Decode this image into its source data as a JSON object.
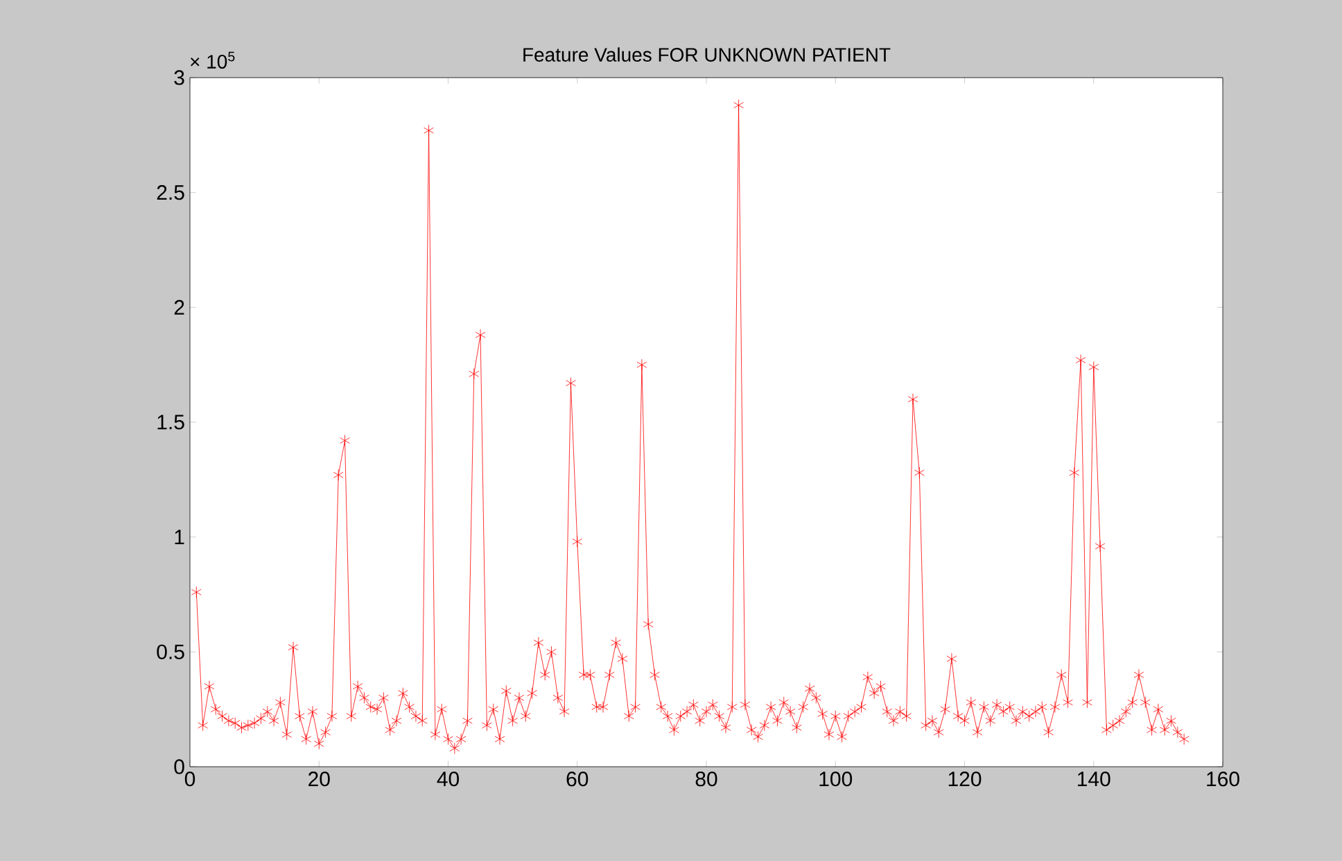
{
  "chart_data": {
    "type": "line",
    "title": "Feature Values FOR UNKNOWN PATIENT",
    "annotations": [
      "× 10$^{5}$"
    ],
    "x": [
      1,
      2,
      3,
      4,
      5,
      6,
      7,
      8,
      9,
      10,
      11,
      12,
      13,
      14,
      15,
      16,
      17,
      18,
      19,
      20,
      21,
      22,
      23,
      24,
      25,
      26,
      27,
      28,
      29,
      30,
      31,
      32,
      33,
      34,
      35,
      36,
      37,
      38,
      39,
      40,
      41,
      42,
      43,
      44,
      45,
      46,
      47,
      48,
      49,
      50,
      51,
      52,
      53,
      54,
      55,
      56,
      57,
      58,
      59,
      60,
      61,
      62,
      63,
      64,
      65,
      66,
      67,
      68,
      69,
      70,
      71,
      72,
      73,
      74,
      75,
      76,
      77,
      78,
      79,
      80,
      81,
      82,
      83,
      84,
      85,
      86,
      87,
      88,
      89,
      90,
      91,
      92,
      93,
      94,
      95,
      96,
      97,
      98,
      99,
      100,
      101,
      102,
      103,
      104,
      105,
      106,
      107,
      108,
      109,
      110,
      111,
      112,
      113,
      114,
      115,
      116,
      117,
      118,
      119,
      120,
      121,
      122,
      123,
      124,
      125,
      126,
      127,
      128,
      129,
      130,
      131,
      132,
      133,
      134,
      135,
      136,
      137,
      138,
      139,
      140,
      141,
      142,
      143,
      144,
      145,
      146,
      147,
      148,
      149,
      150,
      151,
      152,
      153,
      154
    ],
    "series": [
      {
        "color": "#ff0000",
        "values": [
          0.76,
          0.18,
          0.35,
          0.25,
          0.22,
          0.2,
          0.19,
          0.17,
          0.18,
          0.19,
          0.21,
          0.24,
          0.2,
          0.28,
          0.14,
          0.52,
          0.22,
          0.12,
          0.24,
          0.1,
          0.15,
          0.22,
          1.27,
          1.42,
          0.22,
          0.35,
          0.3,
          0.26,
          0.25,
          0.3,
          0.16,
          0.2,
          0.32,
          0.26,
          0.22,
          0.2,
          2.77,
          0.14,
          0.25,
          0.12,
          0.08,
          0.12,
          0.2,
          1.71,
          1.88,
          0.18,
          0.25,
          0.12,
          0.33,
          0.2,
          0.3,
          0.22,
          0.32,
          0.54,
          0.4,
          0.5,
          0.3,
          0.24,
          1.67,
          0.98,
          0.4,
          0.4,
          0.26,
          0.26,
          0.4,
          0.54,
          0.47,
          0.22,
          0.26,
          1.75,
          0.62,
          0.4,
          0.26,
          0.22,
          0.16,
          0.22,
          0.24,
          0.27,
          0.2,
          0.24,
          0.27,
          0.22,
          0.17,
          0.26,
          2.88,
          0.27,
          0.16,
          0.13,
          0.18,
          0.26,
          0.2,
          0.28,
          0.24,
          0.17,
          0.26,
          0.34,
          0.3,
          0.23,
          0.14,
          0.22,
          0.13,
          0.22,
          0.24,
          0.26,
          0.39,
          0.32,
          0.35,
          0.24,
          0.2,
          0.24,
          0.22,
          1.6,
          1.28,
          0.18,
          0.2,
          0.15,
          0.25,
          0.47,
          0.22,
          0.2,
          0.28,
          0.15,
          0.26,
          0.2,
          0.27,
          0.24,
          0.26,
          0.2,
          0.24,
          0.22,
          0.24,
          0.26,
          0.15,
          0.26,
          0.4,
          0.28,
          1.28,
          1.77,
          0.28,
          1.74,
          0.96,
          0.16,
          0.18,
          0.2,
          0.24,
          0.28,
          0.4,
          0.28,
          0.16,
          0.25,
          0.16,
          0.2,
          0.15,
          0.12
        ]
      }
    ],
    "xlim": [
      0,
      160
    ],
    "xticks": [
      0,
      20,
      40,
      60,
      80,
      100,
      120,
      140,
      160
    ],
    "ylim": [
      0,
      3
    ],
    "yticks": [
      0,
      0.5,
      1,
      1.5,
      2,
      2.5,
      3
    ],
    "marker": "cross",
    "line_style": "solid",
    "grid": false
  }
}
